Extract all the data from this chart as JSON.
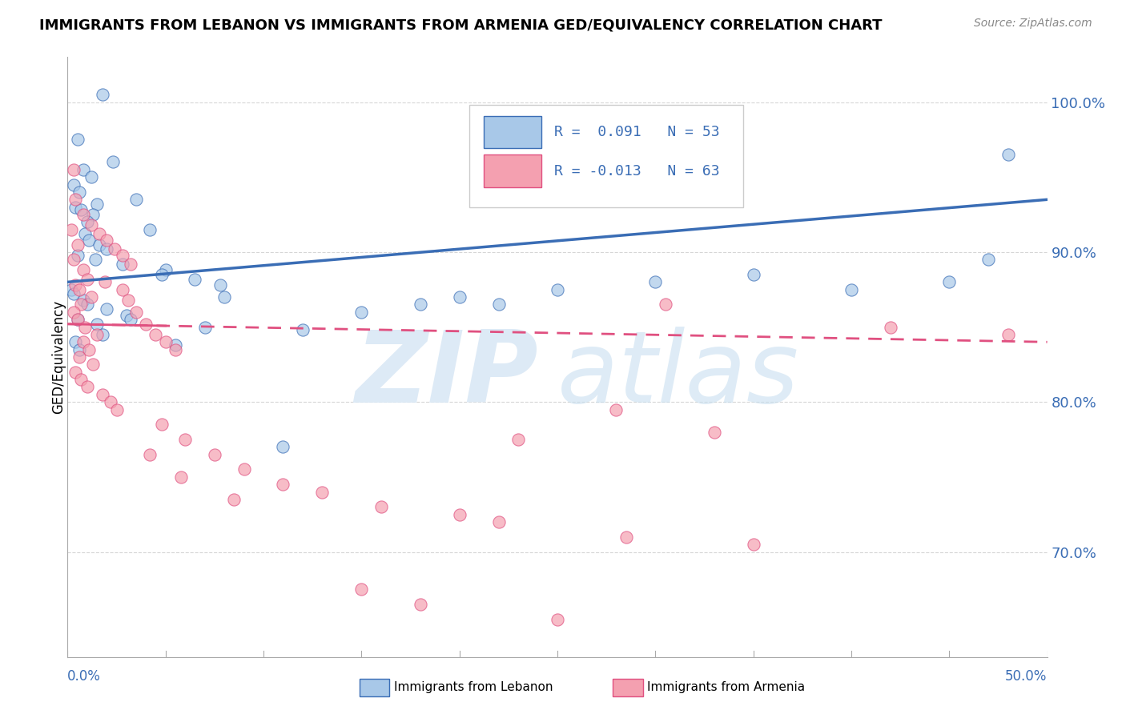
{
  "title": "IMMIGRANTS FROM LEBANON VS IMMIGRANTS FROM ARMENIA GED/EQUIVALENCY CORRELATION CHART",
  "source": "Source: ZipAtlas.com",
  "ylabel": "GED/Equivalency",
  "x_min": 0.0,
  "x_max": 50.0,
  "y_min": 63.0,
  "y_max": 103.0,
  "y_ticks": [
    70.0,
    80.0,
    90.0,
    100.0
  ],
  "y_tick_labels": [
    "70.0%",
    "80.0%",
    "90.0%",
    "100.0%"
  ],
  "legend_r1": "R =  0.091",
  "legend_n1": "N = 53",
  "legend_r2": "R = -0.013",
  "legend_n2": "N = 63",
  "blue_color": "#a8c8e8",
  "pink_color": "#f4a0b0",
  "blue_line_color": "#3a6db5",
  "pink_line_color": "#e05080",
  "background_color": "#ffffff",
  "grid_color": "#cccccc",
  "blue_scatter_x": [
    1.8,
    0.5,
    2.3,
    0.8,
    1.2,
    0.3,
    0.6,
    3.5,
    1.5,
    0.4,
    0.7,
    1.3,
    1.0,
    4.2,
    0.9,
    1.1,
    1.6,
    2.0,
    0.5,
    1.4,
    2.8,
    5.0,
    4.8,
    6.5,
    7.8,
    0.2,
    0.3,
    0.8,
    1.0,
    2.0,
    3.0,
    0.5,
    1.5,
    7.0,
    12.0,
    20.0,
    22.0,
    25.0,
    30.0,
    35.0,
    40.0,
    45.0,
    47.0,
    8.0,
    15.0,
    18.0,
    0.4,
    0.6,
    1.8,
    3.2,
    5.5,
    11.0,
    48.0
  ],
  "blue_scatter_y": [
    100.5,
    97.5,
    96.0,
    95.5,
    95.0,
    94.5,
    94.0,
    93.5,
    93.2,
    93.0,
    92.8,
    92.5,
    92.0,
    91.5,
    91.2,
    90.8,
    90.5,
    90.2,
    89.8,
    89.5,
    89.2,
    88.8,
    88.5,
    88.2,
    87.8,
    87.5,
    87.2,
    86.8,
    86.5,
    86.2,
    85.8,
    85.5,
    85.2,
    85.0,
    84.8,
    87.0,
    86.5,
    87.5,
    88.0,
    88.5,
    87.5,
    88.0,
    89.5,
    87.0,
    86.0,
    86.5,
    84.0,
    83.5,
    84.5,
    85.5,
    83.8,
    77.0,
    96.5
  ],
  "pink_scatter_x": [
    0.2,
    0.5,
    0.3,
    0.8,
    1.0,
    0.4,
    0.6,
    1.2,
    0.7,
    0.3,
    0.5,
    0.9,
    1.5,
    0.8,
    1.1,
    0.6,
    1.3,
    0.4,
    0.7,
    1.0,
    1.8,
    2.2,
    2.5,
    1.9,
    2.8,
    3.1,
    3.5,
    4.0,
    4.5,
    5.0,
    5.5,
    0.3,
    0.4,
    0.8,
    1.2,
    1.6,
    2.0,
    2.4,
    2.8,
    3.2,
    4.8,
    6.0,
    7.5,
    9.0,
    11.0,
    13.0,
    16.0,
    20.0,
    23.0,
    28.0,
    33.0,
    4.2,
    5.8,
    8.5,
    22.0,
    28.5,
    35.0,
    42.0,
    48.0,
    15.0,
    18.0,
    25.0,
    30.5
  ],
  "pink_scatter_y": [
    91.5,
    90.5,
    89.5,
    88.8,
    88.2,
    87.8,
    87.5,
    87.0,
    86.5,
    86.0,
    85.5,
    85.0,
    84.5,
    84.0,
    83.5,
    83.0,
    82.5,
    82.0,
    81.5,
    81.0,
    80.5,
    80.0,
    79.5,
    88.0,
    87.5,
    86.8,
    86.0,
    85.2,
    84.5,
    84.0,
    83.5,
    95.5,
    93.5,
    92.5,
    91.8,
    91.2,
    90.8,
    90.2,
    89.8,
    89.2,
    78.5,
    77.5,
    76.5,
    75.5,
    74.5,
    74.0,
    73.0,
    72.5,
    77.5,
    79.5,
    78.0,
    76.5,
    75.0,
    73.5,
    72.0,
    71.0,
    70.5,
    85.0,
    84.5,
    67.5,
    66.5,
    65.5,
    86.5
  ]
}
